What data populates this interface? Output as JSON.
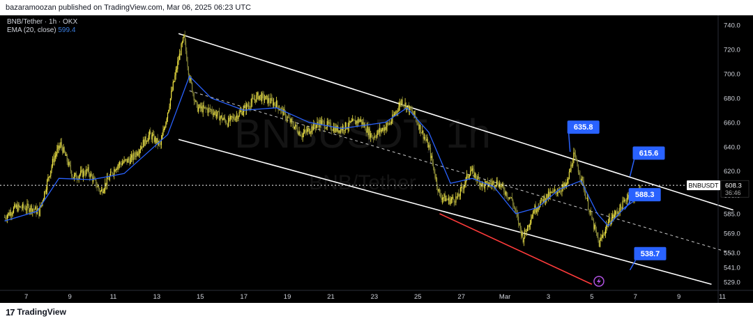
{
  "header": {
    "publisher_line": "bazaramoozan published on TradingView.com, Mar 06, 2025 06:23 UTC"
  },
  "legend": {
    "symbol_line": "BNB/Tether · 1h · OKX",
    "ema_label": "EMA (20, close)",
    "ema_value": "599.4"
  },
  "watermark": {
    "ticker": "BNBUSDT, 1h",
    "pair": "BNB/Tether"
  },
  "price_scale": {
    "ticks": [
      "740.0",
      "720.0",
      "700.0",
      "680.0",
      "660.0",
      "640.0",
      "620.0",
      "600.0",
      "585.0",
      "569.0",
      "553.0",
      "541.0",
      "529.0"
    ],
    "symbol_tag": "BNBUSDT",
    "last_price": "608.3",
    "countdown": "36:46"
  },
  "time_scale": {
    "ticks": [
      "7",
      "9",
      "11",
      "13",
      "15",
      "17",
      "19",
      "21",
      "23",
      "25",
      "27",
      "Mar",
      "3",
      "5",
      "7",
      "9",
      "11"
    ]
  },
  "callouts": [
    {
      "label": "635.8"
    },
    {
      "label": "615.6"
    },
    {
      "label": "588.3"
    },
    {
      "label": "538.7"
    }
  ],
  "footer": {
    "brand": "TradingView"
  },
  "colors": {
    "background": "#000000",
    "bull": "#f0e442",
    "bear": "#8a8a3a",
    "ema": "#2962ff",
    "channel": "#ffffff",
    "red_line": "#ff3b3b",
    "callout": "#2962ff",
    "text": "#d1d4dc"
  },
  "chart_data": {
    "type": "line",
    "x_type": "date",
    "ylim": [
      522,
      748
    ],
    "ohlc_anchors": [
      {
        "x": "2025-02-06 00:00",
        "close": 582
      },
      {
        "x": "2025-02-06 12:00",
        "close": 590
      },
      {
        "x": "2025-02-07 06:00",
        "close": 590
      },
      {
        "x": "2025-02-07 14:00",
        "close": 586
      },
      {
        "x": "2025-02-08 06:00",
        "close": 630
      },
      {
        "x": "2025-02-08 14:00",
        "close": 642
      },
      {
        "x": "2025-02-09 04:00",
        "close": 615
      },
      {
        "x": "2025-02-09 20:00",
        "close": 620
      },
      {
        "x": "2025-02-10 10:00",
        "close": 603
      },
      {
        "x": "2025-02-11 04:00",
        "close": 625
      },
      {
        "x": "2025-02-11 20:00",
        "close": 630
      },
      {
        "x": "2025-02-12 16:00",
        "close": 650
      },
      {
        "x": "2025-02-13 04:00",
        "close": 641
      },
      {
        "x": "2025-02-13 14:00",
        "close": 676
      },
      {
        "x": "2025-02-14 00:00",
        "close": 712
      },
      {
        "x": "2025-02-14 06:00",
        "close": 730
      },
      {
        "x": "2025-02-14 12:00",
        "close": 697
      },
      {
        "x": "2025-02-14 20:00",
        "close": 672
      },
      {
        "x": "2025-02-15 12:00",
        "close": 670
      },
      {
        "x": "2025-02-16 06:00",
        "close": 660
      },
      {
        "x": "2025-02-16 20:00",
        "close": 668
      },
      {
        "x": "2025-02-17 16:00",
        "close": 682
      },
      {
        "x": "2025-02-18 12:00",
        "close": 675
      },
      {
        "x": "2025-02-19 04:00",
        "close": 660
      },
      {
        "x": "2025-02-19 16:00",
        "close": 650
      },
      {
        "x": "2025-02-20 12:00",
        "close": 660
      },
      {
        "x": "2025-02-21 08:00",
        "close": 654
      },
      {
        "x": "2025-02-22 08:00",
        "close": 662
      },
      {
        "x": "2025-02-22 22:00",
        "close": 648
      },
      {
        "x": "2025-02-23 18:00",
        "close": 660
      },
      {
        "x": "2025-02-24 06:00",
        "close": 678
      },
      {
        "x": "2025-02-24 20:00",
        "close": 666
      },
      {
        "x": "2025-02-25 12:00",
        "close": 640
      },
      {
        "x": "2025-02-26 00:00",
        "close": 600
      },
      {
        "x": "2025-02-26 10:00",
        "close": 596
      },
      {
        "x": "2025-02-26 20:00",
        "close": 598
      },
      {
        "x": "2025-02-27 10:00",
        "close": 621
      },
      {
        "x": "2025-02-28 00:00",
        "close": 608
      },
      {
        "x": "2025-02-28 16:00",
        "close": 611
      },
      {
        "x": "2025-03-01 08:00",
        "close": 596
      },
      {
        "x": "2025-03-01 20:00",
        "close": 565
      },
      {
        "x": "2025-03-02 08:00",
        "close": 588
      },
      {
        "x": "2025-03-02 20:00",
        "close": 598
      },
      {
        "x": "2025-03-03 10:00",
        "close": 604
      },
      {
        "x": "2025-03-03 20:00",
        "close": 608
      },
      {
        "x": "2025-03-04 04:00",
        "close": 633
      },
      {
        "x": "2025-03-04 14:00",
        "close": 610
      },
      {
        "x": "2025-03-05 00:00",
        "close": 580
      },
      {
        "x": "2025-03-05 08:00",
        "close": 560
      },
      {
        "x": "2025-03-05 18:00",
        "close": 578
      },
      {
        "x": "2025-03-06 08:00",
        "close": 590
      },
      {
        "x": "2025-03-06 16:00",
        "close": 600
      },
      {
        "x": "2025-03-07 00:00",
        "close": 598
      },
      {
        "x": "2025-03-07 06:00",
        "close": 608
      }
    ],
    "ema_anchors": [
      {
        "x": "2025-02-06 00:00",
        "value": 579
      },
      {
        "x": "2025-02-07 12:00",
        "value": 587
      },
      {
        "x": "2025-02-08 12:00",
        "value": 614
      },
      {
        "x": "2025-02-10 00:00",
        "value": 613
      },
      {
        "x": "2025-02-11 12:00",
        "value": 618
      },
      {
        "x": "2025-02-13 12:00",
        "value": 650
      },
      {
        "x": "2025-02-14 12:00",
        "value": 698
      },
      {
        "x": "2025-02-15 12:00",
        "value": 680
      },
      {
        "x": "2025-02-17 00:00",
        "value": 670
      },
      {
        "x": "2025-02-18 12:00",
        "value": 672
      },
      {
        "x": "2025-02-20 00:00",
        "value": 660
      },
      {
        "x": "2025-02-21 12:00",
        "value": 655
      },
      {
        "x": "2025-02-23 12:00",
        "value": 660
      },
      {
        "x": "2025-02-24 12:00",
        "value": 672
      },
      {
        "x": "2025-02-25 12:00",
        "value": 652
      },
      {
        "x": "2025-02-26 12:00",
        "value": 610
      },
      {
        "x": "2025-02-27 12:00",
        "value": 614
      },
      {
        "x": "2025-02-28 12:00",
        "value": 607
      },
      {
        "x": "2025-03-01 12:00",
        "value": 585
      },
      {
        "x": "2025-03-02 12:00",
        "value": 590
      },
      {
        "x": "2025-03-03 12:00",
        "value": 605
      },
      {
        "x": "2025-03-04 12:00",
        "value": 612
      },
      {
        "x": "2025-03-05 06:00",
        "value": 585
      },
      {
        "x": "2025-03-05 18:00",
        "value": 575
      },
      {
        "x": "2025-03-06 12:00",
        "value": 590
      },
      {
        "x": "2025-03-07 06:00",
        "value": 599.4
      }
    ],
    "channel": {
      "upper": [
        {
          "x": "2025-02-14 00:00",
          "y": 733
        },
        {
          "x": "2025-03-11 12:00",
          "y": 588
        }
      ],
      "middle": [
        {
          "x": "2025-02-14 12:00",
          "y": 686
        },
        {
          "x": "2025-03-11 12:00",
          "y": 552
        }
      ],
      "lower": [
        {
          "x": "2025-02-14 00:00",
          "y": 646
        },
        {
          "x": "2025-03-10 12:00",
          "y": 527
        }
      ]
    },
    "red_line": [
      {
        "x": "2025-02-26 00:00",
        "y": 585
      },
      {
        "x": "2025-03-05 00:00",
        "y": 527
      }
    ],
    "current_price": 608.3,
    "callout_points": [
      {
        "x": "2025-03-04 00:00",
        "y": 635.8
      },
      {
        "x": "2025-03-06 18:00",
        "y": 615.6
      },
      {
        "x": "2025-03-06 12:00",
        "y": 588.3
      },
      {
        "x": "2025-03-06 18:00",
        "y": 538.7
      }
    ]
  }
}
